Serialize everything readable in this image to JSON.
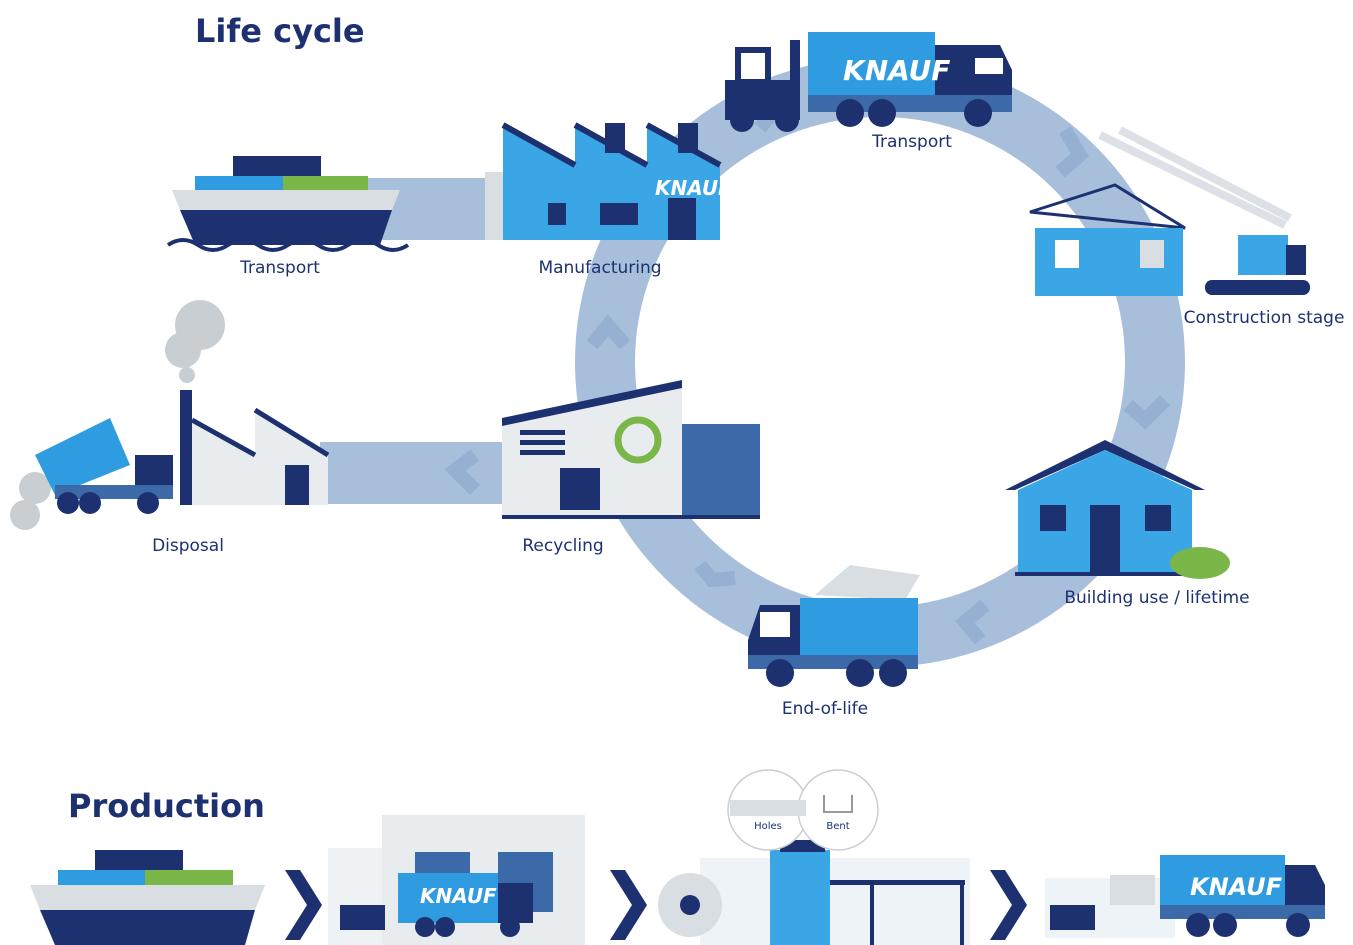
{
  "brand": "KNAUF",
  "life_cycle": {
    "title": "Life cycle",
    "stages": [
      "Transport",
      "Manufacturing",
      "Transport",
      "Construction stage",
      "Building use / lifetime",
      "End-of-life",
      "Recycling",
      "Disposal"
    ]
  },
  "production": {
    "title": "Production",
    "details": [
      "Holes",
      "Bent"
    ]
  }
}
